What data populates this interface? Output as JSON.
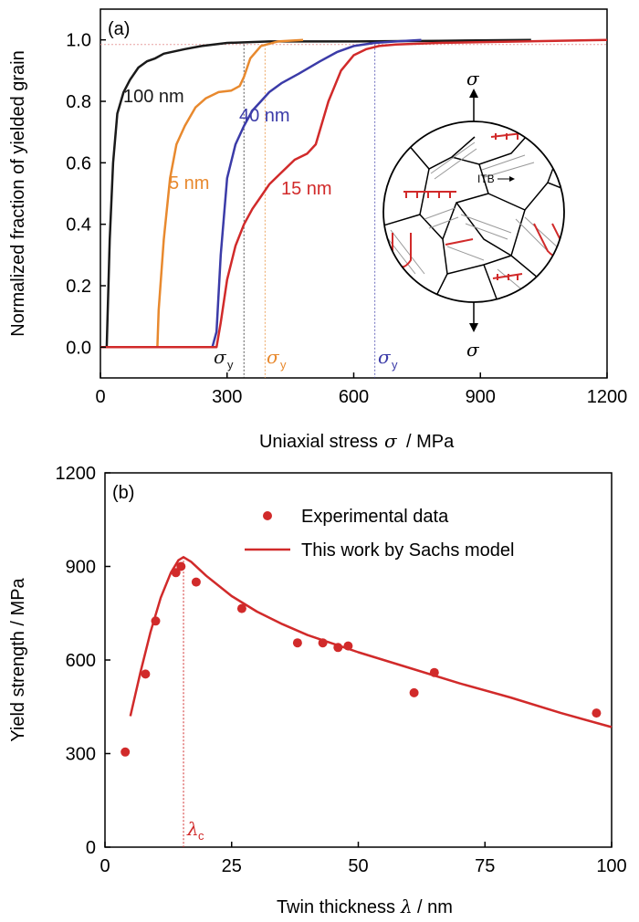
{
  "chart_data": [
    {
      "panel": "(a)",
      "type": "line",
      "xlabel_text": "Uniaxial stress",
      "xlabel_symbol": "σ",
      "xlabel_unit": "/ MPa",
      "ylabel": "Normalized fraction of yielded grain",
      "xlim": [
        0,
        1200
      ],
      "ylim": [
        -0.1,
        1.1
      ],
      "xticks": [
        0,
        300,
        600,
        900,
        1200
      ],
      "yticks": [
        0.0,
        0.2,
        0.4,
        0.6,
        0.8,
        1.0
      ],
      "grid": false,
      "series": [
        {
          "name": "100 nm",
          "color": "#1a1a1a",
          "x": [
            0,
            15,
            22,
            30,
            40,
            55,
            70,
            90,
            110,
            130,
            150,
            200,
            240,
            300,
            400,
            600,
            800,
            1020
          ],
          "y": [
            0,
            0,
            0.35,
            0.6,
            0.76,
            0.83,
            0.87,
            0.91,
            0.93,
            0.94,
            0.955,
            0.97,
            0.98,
            0.99,
            0.995,
            0.995,
            0.997,
            1.0
          ]
        },
        {
          "name": "5 nm",
          "color": "#e8892e",
          "x": [
            0,
            135,
            138,
            150,
            165,
            180,
            200,
            225,
            250,
            280,
            310,
            330,
            340,
            355,
            380,
            420,
            480
          ],
          "y": [
            0,
            0,
            0.12,
            0.35,
            0.55,
            0.66,
            0.72,
            0.78,
            0.81,
            0.83,
            0.835,
            0.85,
            0.88,
            0.94,
            0.98,
            0.995,
            1.0
          ]
        },
        {
          "name": "40 nm",
          "color": "#3b3ba8",
          "x": [
            0,
            265,
            275,
            285,
            300,
            320,
            340,
            360,
            380,
            400,
            430,
            470,
            520,
            560,
            600,
            650,
            700,
            760
          ],
          "y": [
            0,
            0,
            0.05,
            0.3,
            0.55,
            0.66,
            0.72,
            0.77,
            0.8,
            0.83,
            0.86,
            0.89,
            0.93,
            0.96,
            0.98,
            0.99,
            0.995,
            1.0
          ]
        },
        {
          "name": "15 nm",
          "color": "#d12a2a",
          "x": [
            0,
            275,
            285,
            300,
            320,
            340,
            360,
            380,
            400,
            430,
            460,
            490,
            510,
            540,
            570,
            600,
            630,
            660,
            700,
            800,
            1000,
            1200
          ],
          "y": [
            0,
            0,
            0.08,
            0.22,
            0.33,
            0.4,
            0.45,
            0.49,
            0.53,
            0.57,
            0.61,
            0.63,
            0.66,
            0.8,
            0.9,
            0.95,
            0.97,
            0.98,
            0.985,
            0.99,
            0.995,
            1.0
          ]
        }
      ],
      "sigma_y_markers": [
        {
          "x": 340,
          "color": "#1a1a1a"
        },
        {
          "x": 390,
          "color": "#e8892e"
        },
        {
          "x": 650,
          "color": "#3b3ba8"
        }
      ],
      "sigma_symbol": "σ",
      "sigma_sub": "y",
      "reference_line_y": 0.985,
      "inset": {
        "stress_top": "σ",
        "stress_bottom": "σ",
        "itb_label": "ITB"
      }
    },
    {
      "panel": "(b)",
      "type": "scatter",
      "xlabel_text": "Twin thickness",
      "xlabel_symbol": "λ",
      "xlabel_unit": "/ nm",
      "ylabel": "Yield strength / MPa",
      "xlim": [
        0,
        100
      ],
      "ylim": [
        0,
        1200
      ],
      "xticks": [
        0,
        25,
        50,
        75,
        100
      ],
      "yticks": [
        0,
        300,
        600,
        900,
        1200
      ],
      "grid": false,
      "legend_position": "top-right",
      "series": [
        {
          "name": "Experimental data",
          "color": "#d12a2a",
          "kind": "scatter",
          "x": [
            4,
            8,
            10,
            14,
            15,
            18,
            27,
            38,
            43,
            46,
            48,
            61,
            65,
            97
          ],
          "y": [
            305,
            555,
            725,
            880,
            900,
            850,
            765,
            655,
            655,
            640,
            645,
            495,
            560,
            430
          ]
        },
        {
          "name": "This work by Sachs model",
          "color": "#d12a2a",
          "kind": "line",
          "x": [
            5,
            7,
            9,
            11,
            13,
            14.5,
            15.5,
            17,
            20,
            25,
            30,
            35,
            40,
            50,
            60,
            70,
            80,
            90,
            100
          ],
          "y": [
            420,
            560,
            690,
            800,
            880,
            920,
            930,
            915,
            870,
            805,
            755,
            715,
            680,
            625,
            575,
            525,
            480,
            430,
            385
          ]
        }
      ],
      "critical_marker": {
        "x": 15.5,
        "symbol": "λ",
        "sub": "c"
      }
    }
  ]
}
